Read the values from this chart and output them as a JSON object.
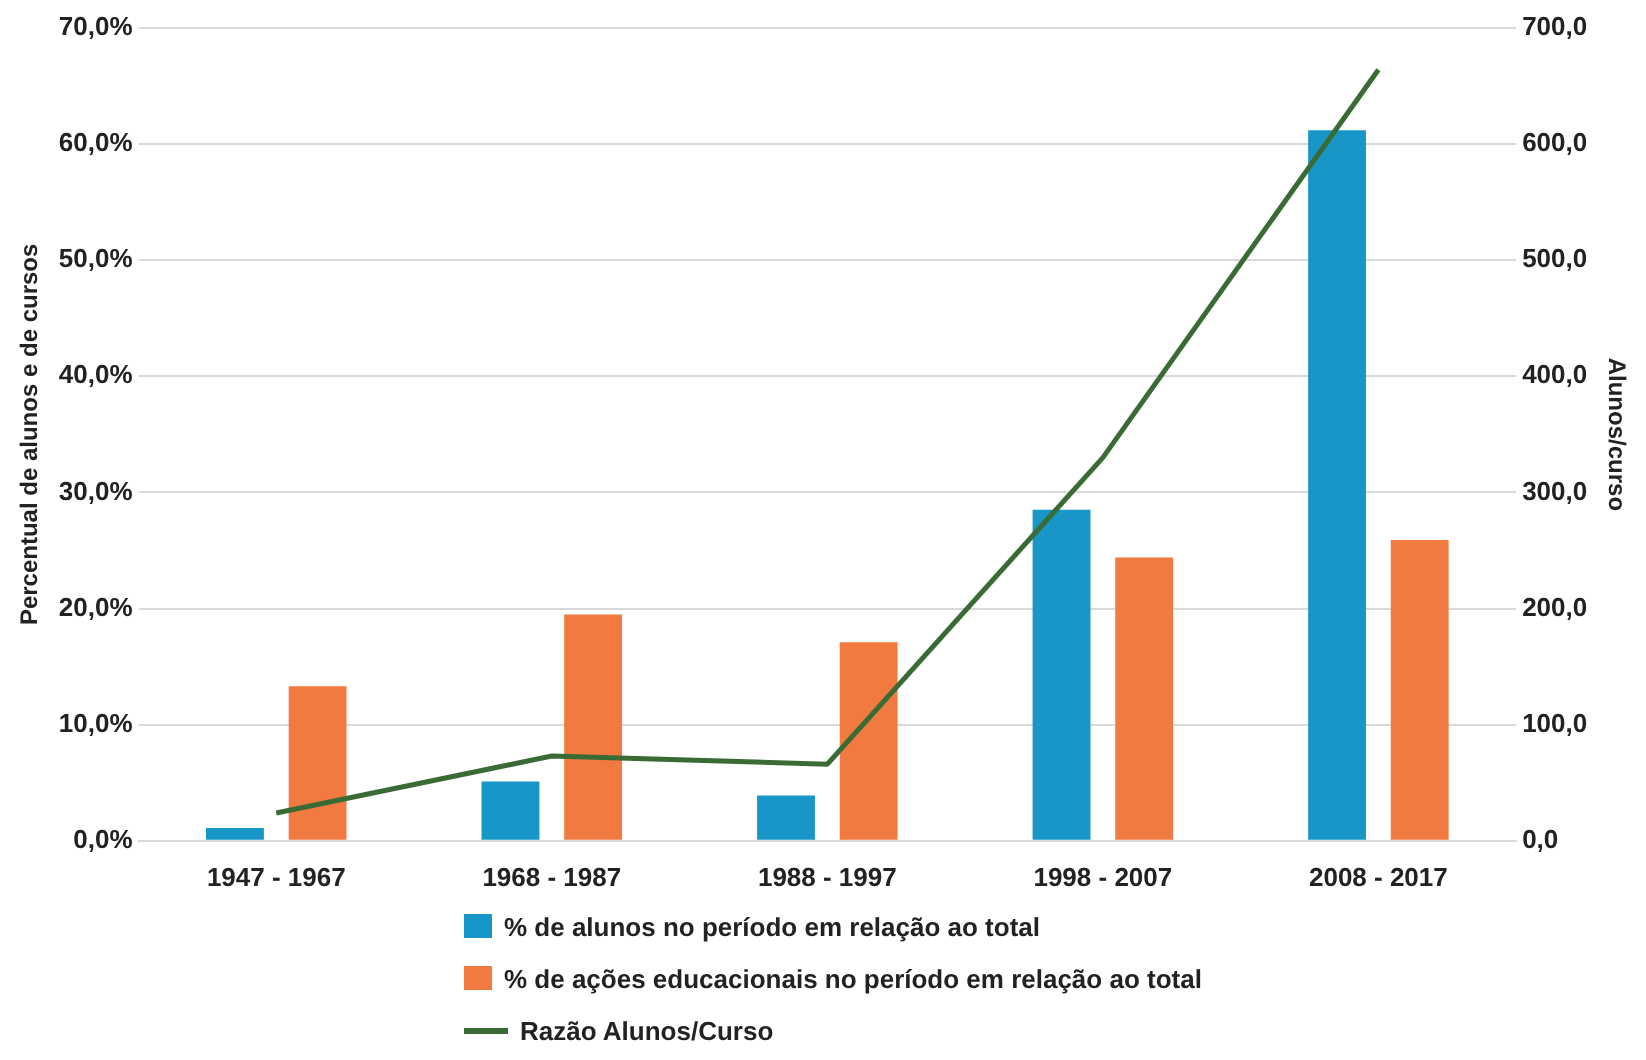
{
  "chart_data": {
    "type": "bar",
    "ylabel": "Percentual de alunos e de cursos",
    "y2label": "Alunos/curso",
    "categories": [
      "1947 - 1967",
      "1968 - 1987",
      "1988 - 1997",
      "1998 - 2007",
      "2008 - 2017"
    ],
    "series": [
      {
        "name": "% de alunos no período em relação ao total",
        "color": "#1896c8",
        "values": [
          1.1,
          5.1,
          3.9,
          28.5,
          61.2
        ]
      },
      {
        "name": "% de ações educacionais no período em relação ao total",
        "color": "#f07a40",
        "values": [
          13.3,
          19.5,
          17.1,
          24.4,
          25.9
        ]
      },
      {
        "name": "Razão Alunos/Curso",
        "type": "line",
        "axis": "y2",
        "color": "#3a6b35",
        "values": [
          24,
          73,
          66,
          330,
          664
        ]
      }
    ],
    "ylim": [
      0,
      70
    ],
    "yticks": [
      {
        "value": 0,
        "label": "0,0%"
      },
      {
        "value": 10,
        "label": "10,0%"
      },
      {
        "value": 20,
        "label": "20,0%"
      },
      {
        "value": 30,
        "label": "30,0%"
      },
      {
        "value": 40,
        "label": "40,0%"
      },
      {
        "value": 50,
        "label": "50,0%"
      },
      {
        "value": 60,
        "label": "60,0%"
      },
      {
        "value": 70,
        "label": "70,0%"
      }
    ],
    "y2lim": [
      0,
      700
    ],
    "y2ticks": [
      {
        "value": 0,
        "label": "0,0"
      },
      {
        "value": 100,
        "label": "100,0"
      },
      {
        "value": 200,
        "label": "200,0"
      },
      {
        "value": 300,
        "label": "300,0"
      },
      {
        "value": 400,
        "label": "400,0"
      },
      {
        "value": 500,
        "label": "500,0"
      },
      {
        "value": 600,
        "label": "600,0"
      },
      {
        "value": 700,
        "label": "700,0"
      }
    ],
    "grid": "y",
    "legend": "bottom",
    "marker": "none",
    "line_style": "solid"
  }
}
